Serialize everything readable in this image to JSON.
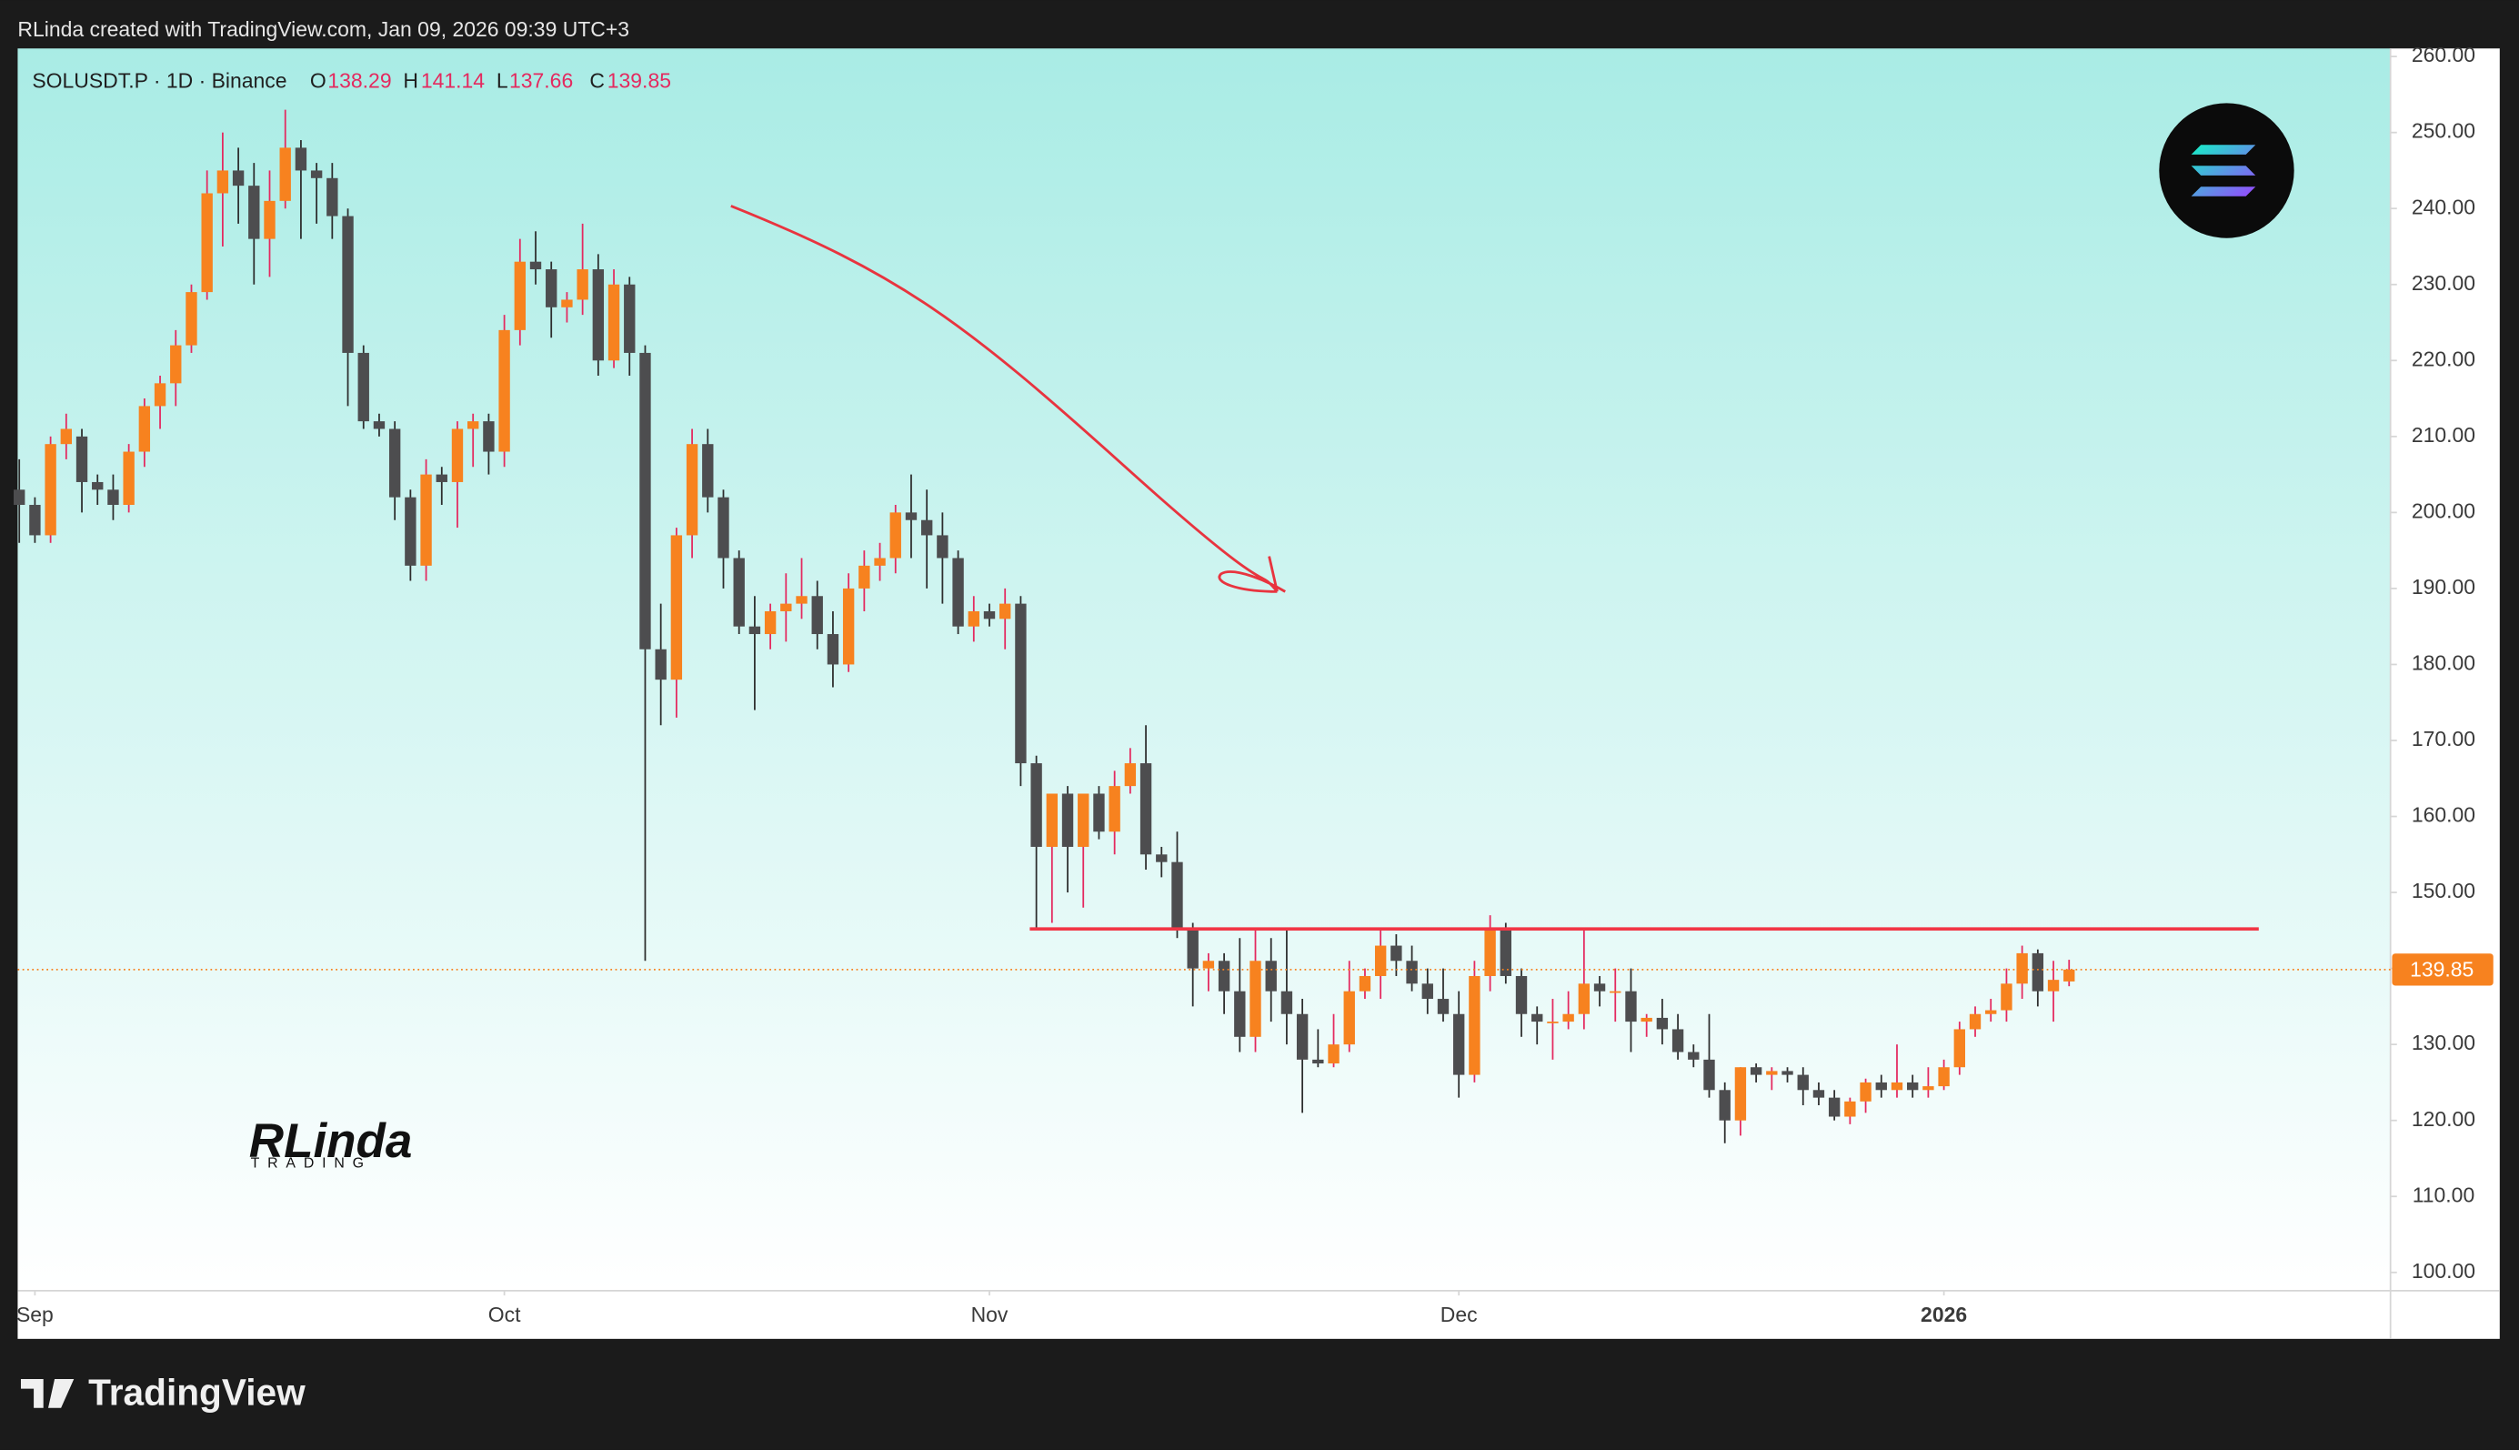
{
  "header": {
    "caption": "RLinda created with TradingView.com, Jan 09, 2026 09:39 UTC+3"
  },
  "footer": {
    "brand": "TradingView"
  },
  "watermark": {
    "name": "RLinda",
    "tagline": "TRADING"
  },
  "chart_data": {
    "type": "candlestick",
    "symbol": "SOLUSDT.P · 1D · Binance",
    "ohlc_legend": [
      {
        "label": "O",
        "value": 138.29
      },
      {
        "label": "H",
        "value": 141.14
      },
      {
        "label": "L",
        "value": 137.66
      },
      {
        "label": "C",
        "value": 139.85
      }
    ],
    "open": [
      203,
      201,
      197,
      209,
      210,
      204,
      203,
      201,
      208,
      214,
      217,
      222,
      229,
      242,
      245,
      243,
      236,
      241,
      248,
      245,
      244,
      239,
      221,
      212,
      211,
      202,
      193,
      205,
      204,
      211,
      212,
      208,
      224,
      233,
      232,
      227,
      228,
      232,
      220,
      230,
      221,
      182,
      178,
      197,
      209,
      202,
      194,
      185,
      184,
      187,
      188,
      189,
      184,
      180,
      190,
      193,
      194,
      200,
      199,
      197,
      194,
      185,
      187,
      186,
      188,
      167,
      156,
      163,
      156,
      163,
      158,
      164,
      167,
      155,
      154,
      145,
      140,
      141,
      137,
      131,
      141,
      137,
      134,
      128,
      127.5,
      130,
      137,
      139,
      143,
      141,
      138,
      136,
      134,
      126,
      139,
      145,
      139,
      134,
      133,
      133,
      134,
      138,
      137,
      137,
      133,
      133.5,
      132,
      129,
      128,
      124,
      120,
      127,
      126,
      126.5,
      126,
      124,
      123,
      120.5,
      122.5,
      125,
      124,
      125,
      124,
      124.5,
      127,
      132,
      134,
      134.5,
      138,
      142,
      137,
      138.29
    ],
    "high": [
      207,
      202,
      210,
      213,
      211,
      205,
      205,
      209,
      215,
      218,
      224,
      230,
      245,
      250,
      248,
      246,
      245,
      253,
      249,
      246,
      246,
      240,
      222,
      213,
      212,
      203,
      207,
      206,
      212,
      213,
      213,
      226,
      236,
      237,
      233,
      229,
      238,
      234,
      232,
      231,
      222,
      188,
      198,
      211,
      211,
      203,
      195,
      189,
      188,
      192,
      194,
      191,
      187,
      192,
      195,
      196,
      201,
      205,
      203,
      200,
      195,
      189,
      188,
      190,
      189,
      168,
      163,
      164,
      163,
      164,
      166,
      169,
      172,
      156,
      158,
      146,
      142,
      142,
      144,
      145,
      144,
      145,
      136,
      132,
      134,
      141,
      140,
      145,
      144.5,
      143,
      140,
      140,
      137,
      141,
      147,
      146,
      140,
      135,
      136,
      137,
      145,
      139,
      140,
      140,
      134,
      136,
      134,
      130,
      134,
      125,
      127,
      127.5,
      127,
      127,
      127,
      125,
      124,
      123,
      125.5,
      126,
      130,
      126,
      127,
      128,
      133,
      135,
      136,
      140,
      143,
      142.5,
      141,
      141.14
    ],
    "low": [
      196,
      196,
      196,
      207,
      200,
      201,
      199,
      200,
      206,
      211,
      214,
      221,
      228,
      235,
      238,
      230,
      231,
      240,
      236,
      238,
      236,
      214,
      211,
      210,
      199,
      191,
      191,
      201,
      198,
      206,
      205,
      206,
      222,
      230,
      223,
      225,
      226,
      218,
      219,
      218,
      141,
      172,
      173,
      194,
      200,
      190,
      184,
      174,
      182,
      183,
      186,
      182,
      177,
      179,
      187,
      191,
      192,
      194,
      190,
      188,
      184,
      183,
      185,
      182,
      164,
      145,
      146,
      150,
      148,
      157,
      155,
      163,
      153,
      152,
      144,
      135,
      137,
      134,
      129,
      129,
      133,
      130,
      121,
      127,
      127,
      129,
      136,
      136,
      139,
      137,
      134,
      133,
      123,
      125,
      137,
      138,
      131,
      130,
      128,
      132,
      132,
      135,
      133,
      129,
      131,
      130,
      128,
      127,
      123,
      117,
      118,
      125,
      124,
      125,
      122,
      122,
      120,
      119.5,
      121,
      123,
      123,
      123,
      123,
      124,
      126,
      131,
      133,
      133,
      136,
      135,
      133,
      137.66
    ],
    "close": [
      201,
      197,
      209,
      211,
      204,
      203,
      201,
      208,
      214,
      217,
      222,
      229,
      242,
      245,
      243,
      236,
      241,
      248,
      245,
      244,
      239,
      221,
      212,
      211,
      202,
      193,
      205,
      204,
      211,
      212,
      208,
      224,
      233,
      232,
      227,
      228,
      232,
      220,
      230,
      221,
      182,
      178,
      197,
      209,
      202,
      194,
      185,
      184,
      187,
      188,
      189,
      184,
      180,
      190,
      193,
      194,
      200,
      199,
      197,
      194,
      185,
      187,
      186,
      188,
      167,
      156,
      163,
      156,
      163,
      158,
      164,
      167,
      155,
      154,
      145,
      140,
      141,
      137,
      131,
      141,
      137,
      134,
      128,
      127.5,
      130,
      137,
      139,
      143,
      141,
      138,
      136,
      134,
      126,
      139,
      145,
      139,
      134,
      133,
      133,
      134,
      138,
      137,
      137,
      133,
      133.5,
      132,
      129,
      128,
      124,
      120,
      127,
      126,
      126.5,
      126,
      124,
      123,
      120.5,
      122.5,
      125,
      124,
      125,
      124,
      124.5,
      127,
      132,
      134,
      134.5,
      138,
      142,
      137,
      138.5,
      139.85
    ],
    "up_color": "#f7821f",
    "down_color": "#4d4d4f",
    "up_wick": "#e4295f",
    "down_wick": "#2d2d2d",
    "ylim": [
      97.6,
      261.06
    ],
    "yticks": [
      {
        "value": 100,
        "label": "100.00"
      },
      {
        "value": 110,
        "label": "110.00"
      },
      {
        "value": 120,
        "label": "120.00"
      },
      {
        "value": 130,
        "label": "130.00"
      },
      {
        "value": 140,
        "label": "140.00"
      },
      {
        "value": 150,
        "label": "150.00"
      },
      {
        "value": 160,
        "label": "160.00"
      },
      {
        "value": 170,
        "label": "170.00"
      },
      {
        "value": 180,
        "label": "180.00"
      },
      {
        "value": 190,
        "label": "190.00"
      },
      {
        "value": 200,
        "label": "200.00"
      },
      {
        "value": 210,
        "label": "210.00"
      },
      {
        "value": 220,
        "label": "220.00"
      },
      {
        "value": 230,
        "label": "230.00"
      },
      {
        "value": 240,
        "label": "240.00"
      },
      {
        "value": 250,
        "label": "250.00"
      },
      {
        "value": 260,
        "label": "260.00"
      }
    ],
    "xticks": [
      {
        "value": 1,
        "label": "Sep"
      },
      {
        "value": 31,
        "label": "Oct"
      },
      {
        "value": 62,
        "label": "Nov"
      },
      {
        "value": 92,
        "label": "Dec"
      },
      {
        "value": 123,
        "label": "2026"
      }
    ],
    "last_price": 139.85,
    "last_price_color": "#f7821f",
    "level_line": {
      "value": 145.2,
      "color": "#f23645"
    }
  }
}
